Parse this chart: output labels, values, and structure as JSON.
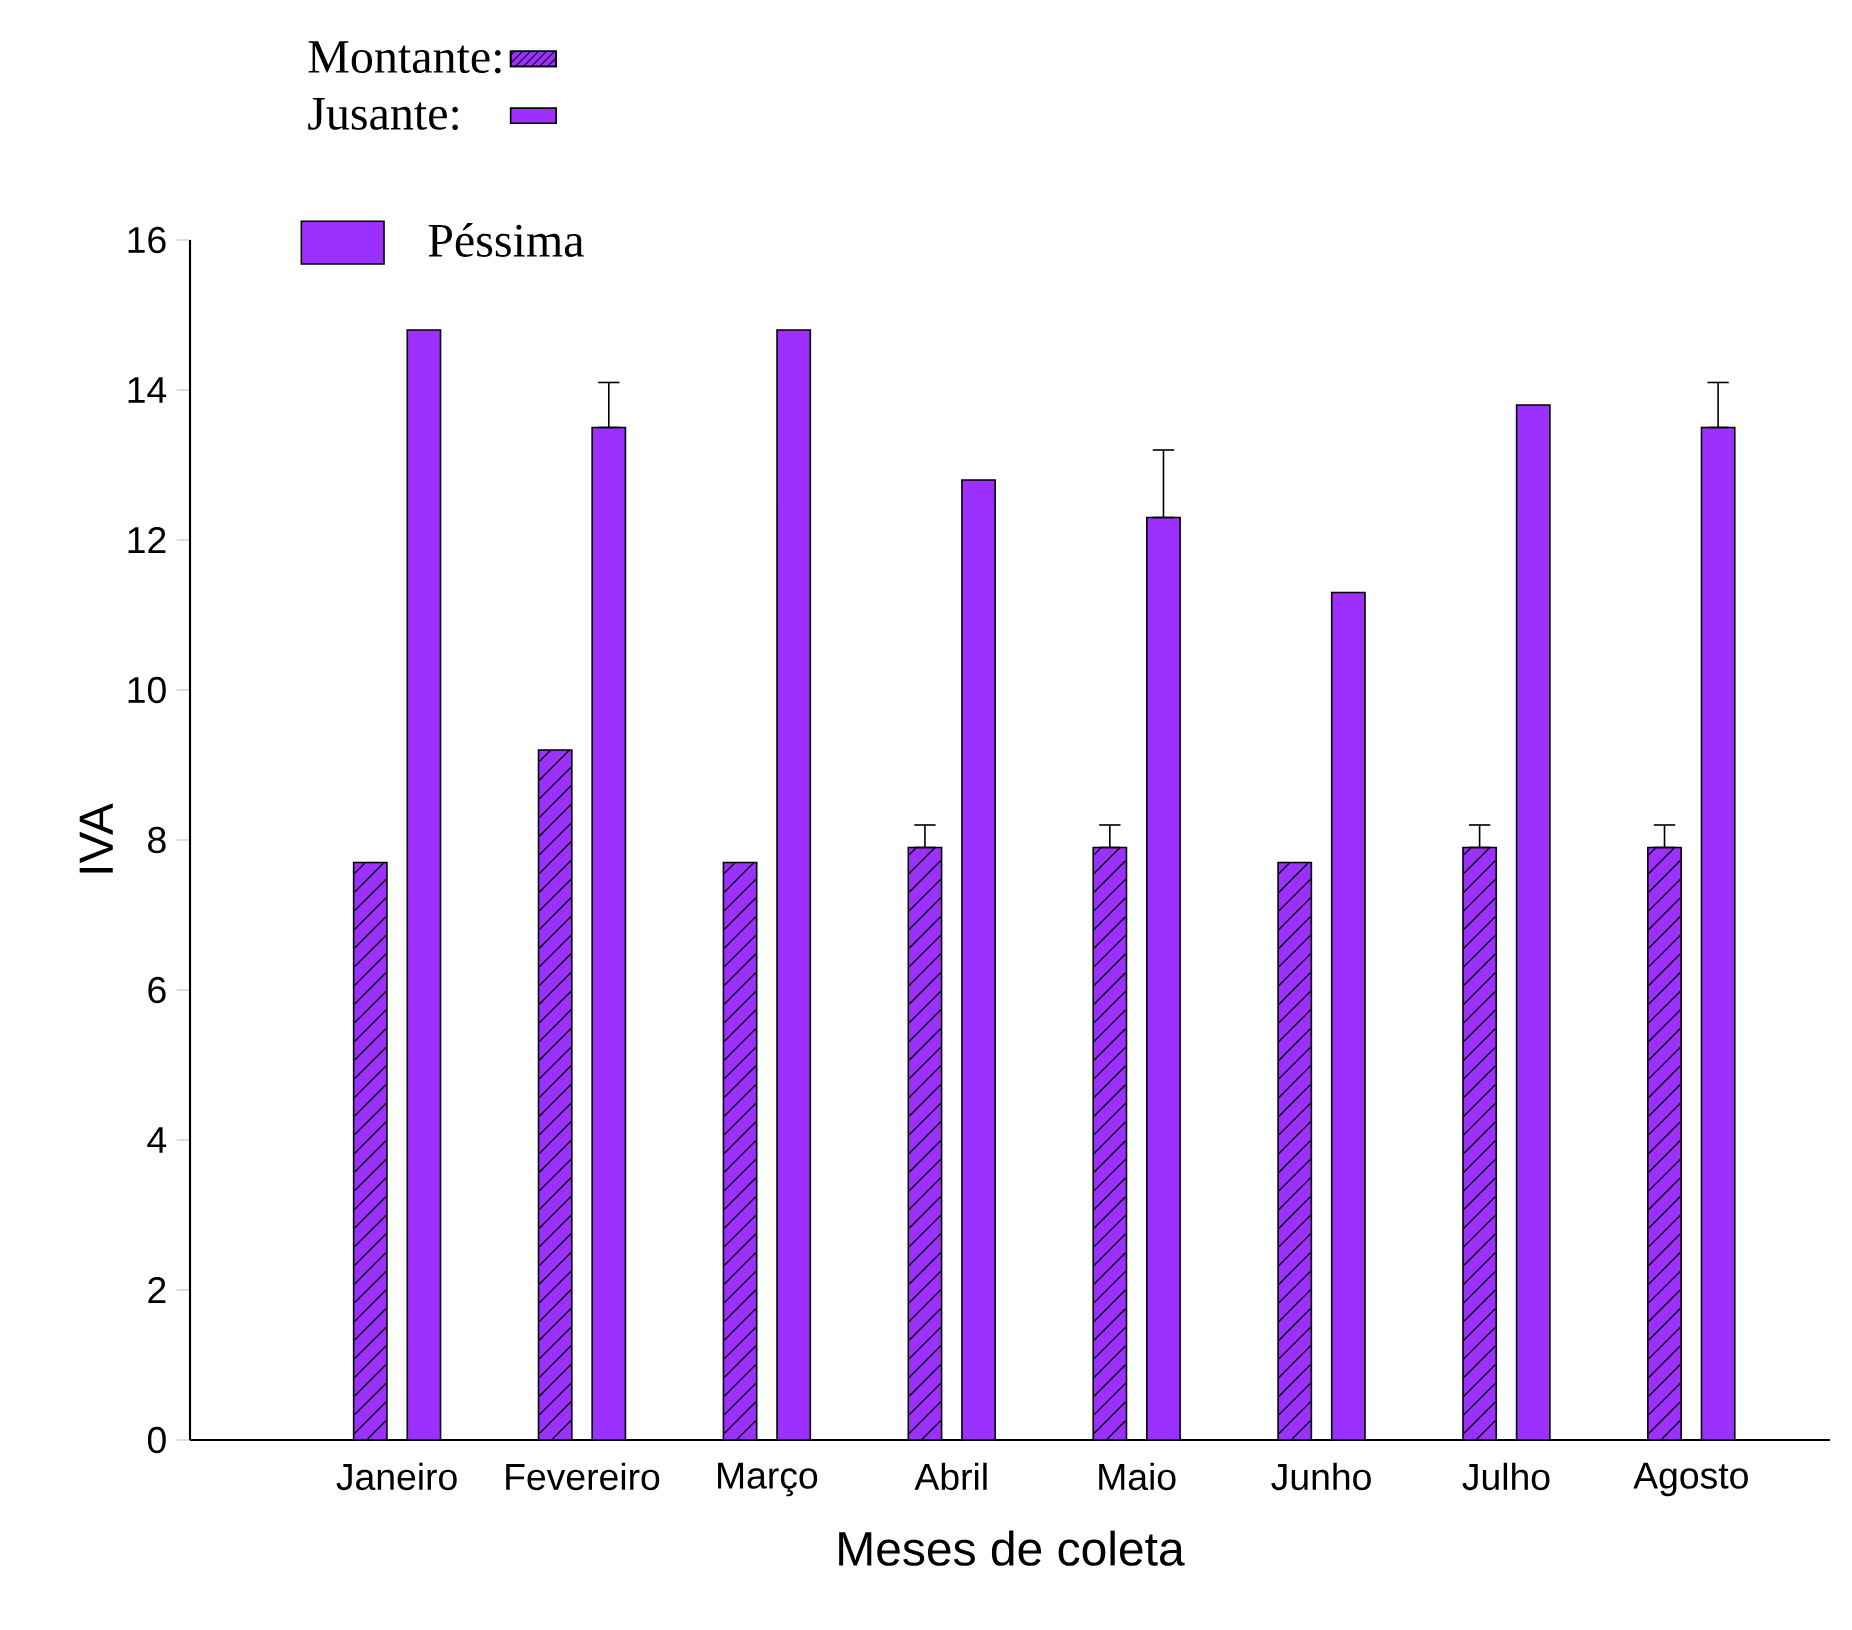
{
  "chart_data": {
    "type": "bar",
    "xlabel": "Meses de coleta",
    "ylabel": "IVA",
    "categories": [
      "Janeiro",
      "Fevereiro",
      "Março",
      "Abril",
      "Maio",
      "Junho",
      "Julho",
      "Agosto"
    ],
    "series": [
      {
        "name": "Montante:",
        "color": "#9b30ff",
        "values": [
          7.7,
          9.2,
          7.7,
          7.9,
          7.9,
          7.7,
          7.9,
          7.9
        ],
        "errors": [
          null,
          null,
          null,
          [
            7.9,
            8.2
          ],
          [
            7.9,
            8.2
          ],
          null,
          [
            7.9,
            8.2
          ],
          [
            7.9,
            8.2
          ]
        ]
      },
      {
        "name": "Jusante:",
        "color": "#9b30ff",
        "values": [
          14.8,
          13.5,
          14.8,
          12.8,
          12.3,
          11.3,
          13.8,
          13.5
        ],
        "errors": [
          null,
          [
            13.5,
            14.1
          ],
          null,
          null,
          [
            12.3,
            13.2
          ],
          null,
          null,
          [
            13.5,
            14.1
          ]
        ]
      }
    ],
    "ylim": [
      0,
      16
    ],
    "yticks": [
      0,
      2,
      4,
      6,
      8,
      10,
      12,
      14,
      16
    ],
    "legend": "top left",
    "annotations": [
      "Péssima"
    ]
  }
}
